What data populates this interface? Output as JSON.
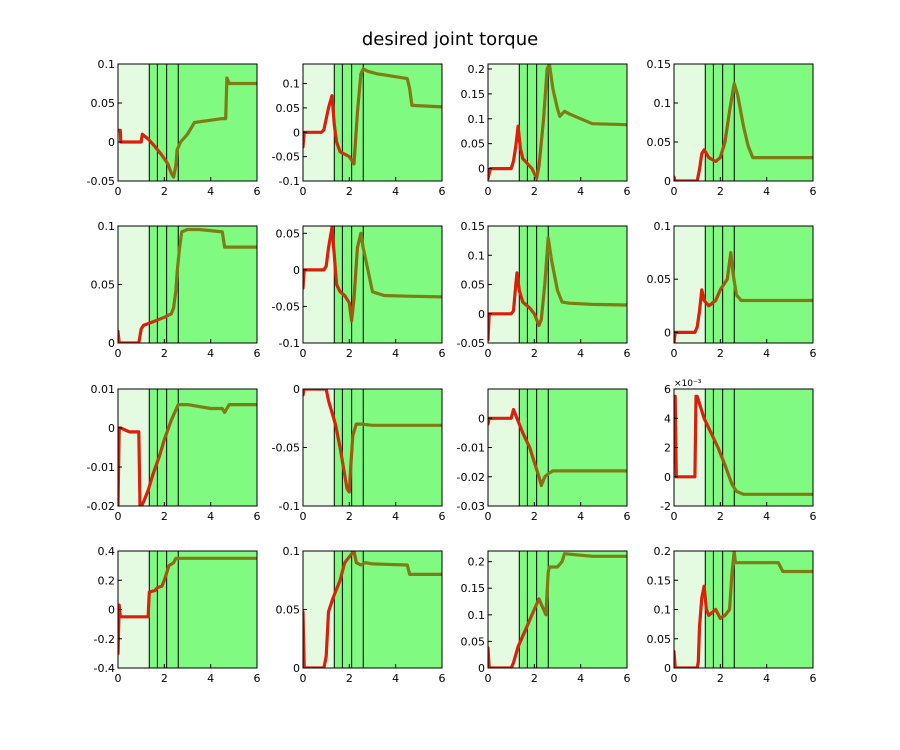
{
  "title": "desired joint torque",
  "colors": {
    "phase_light": "#e4fbe2",
    "phase_dark": "#80fa80",
    "line_start": "#dc1e0a",
    "line_end": "#7d7d14",
    "frame": "#000000"
  },
  "chart_data": [
    {
      "type": "line",
      "ylim": [
        -0.05,
        0.1
      ],
      "yticks": [
        "-0.05",
        "0",
        "0.05",
        "0.1"
      ],
      "xticks": [
        "0",
        "2",
        "4",
        "6"
      ],
      "xlim": [
        0,
        6
      ],
      "phases": [
        1.35,
        1.7,
        2.1,
        2.6
      ],
      "series": [
        {
          "x": [
            0,
            0.1,
            0.12,
            1,
            1.05,
            1.3,
            1.6,
            1.9,
            2.15,
            2.3,
            2.4,
            2.5,
            2.55,
            2.7,
            3,
            3.2,
            3.3,
            4,
            4.5,
            4.65,
            4.7,
            4.8,
            6
          ],
          "y": [
            0.015,
            0.015,
            0,
            0,
            0.01,
            0.004,
            -0.006,
            -0.017,
            -0.028,
            -0.04,
            -0.045,
            -0.03,
            -0.01,
            0,
            0.01,
            0.02,
            0.025,
            0.028,
            0.03,
            0.03,
            0.082,
            0.075,
            0.075
          ]
        }
      ]
    },
    {
      "type": "line",
      "ylim": [
        -0.1,
        0.14
      ],
      "yticks": [
        "-0.1",
        "-0.05",
        "0",
        "0.05",
        "0.1"
      ],
      "xticks": [
        "0",
        "2",
        "4",
        "6"
      ],
      "xlim": [
        0,
        6
      ],
      "phases": [
        1.35,
        1.7,
        2.1,
        2.6
      ],
      "series": [
        {
          "x": [
            0,
            0.05,
            0.15,
            0.8,
            0.9,
            1.1,
            1.25,
            1.35,
            1.45,
            1.6,
            1.8,
            2.0,
            2.2,
            2.35,
            2.5,
            2.6,
            2.8,
            3.2,
            4.5,
            4.6,
            4.7,
            6
          ],
          "y": [
            -0.03,
            0,
            0,
            0,
            0.005,
            0.05,
            0.075,
            0.015,
            -0.02,
            -0.04,
            -0.045,
            -0.05,
            -0.065,
            0.04,
            0.12,
            0.13,
            0.125,
            0.12,
            0.11,
            0.09,
            0.055,
            0.052
          ]
        }
      ]
    },
    {
      "type": "line",
      "ylim": [
        -0.025,
        0.21
      ],
      "yticks": [
        "0",
        "0.05",
        "0.1",
        "0.15",
        "0.2"
      ],
      "xticks": [
        "0",
        "2",
        "4",
        "6"
      ],
      "xlim": [
        0,
        6
      ],
      "phases": [
        1.35,
        1.7,
        2.1,
        2.6
      ],
      "series": [
        {
          "x": [
            0,
            0.1,
            0.2,
            1,
            1.1,
            1.2,
            1.3,
            1.4,
            1.5,
            1.7,
            1.9,
            2.0,
            2.1,
            2.2,
            2.4,
            2.55,
            2.65,
            2.8,
            3,
            3.1,
            3.3,
            3.5,
            4,
            4.5,
            6
          ],
          "y": [
            -0.02,
            0,
            0,
            0,
            0.015,
            0.045,
            0.085,
            0.04,
            0.02,
            0.01,
            0.0,
            -0.01,
            -0.02,
            0.005,
            0.1,
            0.2,
            0.21,
            0.16,
            0.12,
            0.105,
            0.115,
            0.11,
            0.1,
            0.09,
            0.088
          ]
        }
      ]
    },
    {
      "type": "line",
      "ylim": [
        0,
        0.15
      ],
      "yticks": [
        "0",
        "0.05",
        "0.1",
        "0.15"
      ],
      "xticks": [
        "0",
        "2",
        "4",
        "6"
      ],
      "xlim": [
        0,
        6
      ],
      "phases": [
        1.35,
        1.7,
        2.1,
        2.6
      ],
      "series": [
        {
          "x": [
            0,
            0.05,
            0.2,
            1,
            1.1,
            1.2,
            1.3,
            1.5,
            1.8,
            2.0,
            2.2,
            2.4,
            2.6,
            2.75,
            3.0,
            3.2,
            3.4,
            3.6,
            6
          ],
          "y": [
            0.005,
            0,
            0,
            0,
            0.015,
            0.035,
            0.04,
            0.03,
            0.025,
            0.03,
            0.05,
            0.09,
            0.125,
            0.11,
            0.07,
            0.045,
            0.03,
            0.03,
            0.03
          ]
        }
      ]
    },
    {
      "type": "line",
      "ylim": [
        0,
        0.1
      ],
      "yticks": [
        "0",
        "0.05",
        "0.1"
      ],
      "xticks": [
        "0",
        "2",
        "4",
        "6"
      ],
      "xlim": [
        0,
        6
      ],
      "phases": [
        1.35,
        1.7,
        2.1,
        2.6
      ],
      "series": [
        {
          "x": [
            0,
            0.05,
            0.1,
            0.9,
            1.0,
            1.1,
            1.5,
            2.0,
            2.3,
            2.4,
            2.5,
            2.55,
            2.65,
            2.75,
            3.0,
            3.5,
            4.5,
            4.6,
            6
          ],
          "y": [
            0.01,
            0,
            0,
            0,
            0.012,
            0.015,
            0.018,
            0.022,
            0.025,
            0.03,
            0.045,
            0.06,
            0.08,
            0.095,
            0.097,
            0.097,
            0.095,
            0.082,
            0.082
          ]
        }
      ]
    },
    {
      "type": "line",
      "ylim": [
        -0.1,
        0.06
      ],
      "yticks": [
        "-0.1",
        "-0.05",
        "0",
        "0.05"
      ],
      "xticks": [
        "0",
        "2",
        "4",
        "6"
      ],
      "xlim": [
        0,
        6
      ],
      "phases": [
        1.35,
        1.7,
        2.1,
        2.6
      ],
      "series": [
        {
          "x": [
            0,
            0.05,
            0.1,
            0.9,
            1.0,
            1.1,
            1.25,
            1.35,
            1.45,
            1.6,
            1.8,
            2.0,
            2.1,
            2.2,
            2.35,
            2.5,
            2.6,
            2.8,
            3.0,
            3.5,
            4.5,
            6
          ],
          "y": [
            -0.025,
            0,
            0,
            0,
            0.005,
            0.03,
            0.058,
            0.02,
            -0.02,
            -0.03,
            -0.035,
            -0.045,
            -0.07,
            -0.04,
            0.03,
            0.05,
            0.03,
            0.0,
            -0.03,
            -0.035,
            -0.036,
            -0.037
          ]
        }
      ]
    },
    {
      "type": "line",
      "ylim": [
        -0.05,
        0.15
      ],
      "yticks": [
        "-0.05",
        "0",
        "0.05",
        "0.1",
        "0.15"
      ],
      "xticks": [
        "0",
        "2",
        "4",
        "6"
      ],
      "xlim": [
        0,
        6
      ],
      "phases": [
        1.35,
        1.7,
        2.1,
        2.6
      ],
      "series": [
        {
          "x": [
            0,
            0.05,
            0.1,
            1.0,
            1.1,
            1.2,
            1.25,
            1.35,
            1.5,
            1.8,
            2.0,
            2.2,
            2.3,
            2.45,
            2.6,
            2.75,
            3.0,
            3.2,
            3.5,
            4.5,
            6
          ],
          "y": [
            -0.045,
            0,
            0,
            0,
            0.005,
            0.05,
            0.07,
            0.04,
            0.02,
            0.01,
            0.0,
            -0.02,
            -0.01,
            0.05,
            0.13,
            0.09,
            0.04,
            0.02,
            0.018,
            0.016,
            0.015
          ]
        }
      ]
    },
    {
      "type": "line",
      "ylim": [
        -0.01,
        0.1
      ],
      "yticks": [
        "0",
        "0.05",
        "0.1"
      ],
      "xticks": [
        "0",
        "2",
        "4",
        "6"
      ],
      "xlim": [
        0,
        6
      ],
      "phases": [
        1.35,
        1.7,
        2.1,
        2.6
      ],
      "series": [
        {
          "x": [
            0,
            0.05,
            0.15,
            0.9,
            1.0,
            1.1,
            1.2,
            1.3,
            1.5,
            1.8,
            2.0,
            2.3,
            2.45,
            2.55,
            2.7,
            2.9,
            3.1,
            3.5,
            6
          ],
          "y": [
            -0.01,
            0,
            0,
            0,
            0.005,
            0.02,
            0.04,
            0.03,
            0.025,
            0.03,
            0.04,
            0.05,
            0.075,
            0.055,
            0.035,
            0.03,
            0.03,
            0.03,
            0.03
          ]
        }
      ]
    },
    {
      "type": "line",
      "ylim": [
        -0.02,
        0.01
      ],
      "yticks": [
        "-0.02",
        "-0.01",
        "0",
        "0.01"
      ],
      "xticks": [
        "0",
        "2",
        "4",
        "6"
      ],
      "xlim": [
        0,
        6
      ],
      "phases": [
        1.35,
        1.7,
        2.1,
        2.6
      ],
      "series": [
        {
          "x": [
            0,
            0.05,
            0.12,
            0.5,
            0.9,
            0.95,
            1.0,
            1.1,
            1.3,
            1.5,
            1.8,
            2.0,
            2.3,
            2.6,
            2.8,
            3,
            4,
            4.5,
            4.6,
            4.8,
            6
          ],
          "y": [
            -0.02,
            0,
            0,
            -0.001,
            -0.001,
            -0.02,
            -0.02,
            -0.019,
            -0.016,
            -0.012,
            -0.007,
            -0.003,
            0.002,
            0.006,
            0.006,
            0.006,
            0.005,
            0.005,
            0.004,
            0.006,
            0.006
          ]
        }
      ]
    },
    {
      "type": "line",
      "ylim": [
        -0.1,
        0
      ],
      "yticks": [
        "-0.1",
        "-0.05",
        "0"
      ],
      "xticks": [
        "0",
        "2",
        "4",
        "6"
      ],
      "xlim": [
        0,
        6
      ],
      "phases": [
        1.35,
        1.7,
        2.1,
        2.6
      ],
      "series": [
        {
          "x": [
            0,
            0.05,
            0.1,
            1,
            1.1,
            1.4,
            1.6,
            1.9,
            2.0,
            2.05,
            2.15,
            2.3,
            2.5,
            3,
            4.5,
            6
          ],
          "y": [
            -0.005,
            0,
            0,
            0,
            -0.01,
            -0.03,
            -0.05,
            -0.085,
            -0.088,
            -0.07,
            -0.04,
            -0.03,
            -0.03,
            -0.031,
            -0.031,
            -0.031
          ]
        }
      ]
    },
    {
      "type": "line",
      "ylim": [
        -0.03,
        0.01
      ],
      "yticks": [
        "-0.03",
        "-0.02",
        "-0.01",
        "0"
      ],
      "xticks": [
        "0",
        "2",
        "4",
        "6"
      ],
      "xlim": [
        0,
        6
      ],
      "phases": [
        1.35,
        1.7,
        2.1,
        2.6
      ],
      "series": [
        {
          "x": [
            0,
            0.05,
            0.1,
            1.0,
            1.1,
            1.2,
            1.5,
            1.8,
            2.0,
            2.2,
            2.3,
            2.45,
            2.6,
            2.8,
            3.0,
            4.5,
            6
          ],
          "y": [
            -0.002,
            0,
            0,
            0,
            0.003,
            0.001,
            -0.005,
            -0.01,
            -0.015,
            -0.02,
            -0.023,
            -0.02,
            -0.019,
            -0.018,
            -0.018,
            -0.018,
            -0.018
          ]
        }
      ]
    },
    {
      "type": "line",
      "ylim": [
        -0.002,
        0.006
      ],
      "yticks": [
        "-2",
        "0",
        "2",
        "4",
        "6"
      ],
      "exponent": "×10⁻³",
      "xticks": [
        "0",
        "2",
        "4",
        "6"
      ],
      "xlim": [
        0,
        6
      ],
      "phases": [
        1.35,
        1.7,
        2.1,
        2.6
      ],
      "series": [
        {
          "x": [
            0,
            0.05,
            0.1,
            0.15,
            0.5,
            0.9,
            0.95,
            1.0,
            1.1,
            1.3,
            1.6,
            1.9,
            2.2,
            2.5,
            2.7,
            3,
            4,
            5,
            6
          ],
          "y": [
            0.0055,
            0.0055,
            0,
            0,
            0,
            0,
            0.0055,
            0.0055,
            0.005,
            0.004,
            0.003,
            0.002,
            0.0008,
            -0.0005,
            -0.001,
            -0.0012,
            -0.0012,
            -0.0012,
            -0.0012
          ]
        }
      ]
    },
    {
      "type": "line",
      "ylim": [
        -0.4,
        0.4
      ],
      "yticks": [
        "-0.4",
        "-0.2",
        "0",
        "0.2",
        "0.4"
      ],
      "xticks": [
        "0",
        "2",
        "4",
        "6"
      ],
      "xlim": [
        0,
        6
      ],
      "phases": [
        1.35,
        1.7,
        2.1,
        2.6
      ],
      "series": [
        {
          "x": [
            0,
            0.05,
            0.1,
            0.15,
            1.3,
            1.35,
            1.6,
            1.7,
            1.9,
            2.0,
            2.2,
            2.4,
            2.5,
            2.6,
            3,
            4,
            6
          ],
          "y": [
            -0.3,
            0.03,
            -0.05,
            -0.05,
            -0.05,
            0.12,
            0.13,
            0.15,
            0.16,
            0.2,
            0.3,
            0.32,
            0.35,
            0.35,
            0.35,
            0.35,
            0.35
          ]
        }
      ]
    },
    {
      "type": "line",
      "ylim": [
        0,
        0.1
      ],
      "yticks": [
        "0",
        "0.05",
        "0.1"
      ],
      "xticks": [
        "0",
        "2",
        "4",
        "6"
      ],
      "xlim": [
        0,
        6
      ],
      "phases": [
        1.35,
        1.7,
        2.1,
        2.6
      ],
      "series": [
        {
          "x": [
            0,
            0.05,
            0.1,
            0.9,
            1.0,
            1.1,
            1.3,
            1.6,
            1.8,
            2.0,
            2.2,
            2.3,
            2.5,
            2.7,
            3.0,
            4.5,
            4.6,
            4.7,
            6
          ],
          "y": [
            0.048,
            0,
            0,
            0,
            0.01,
            0.048,
            0.06,
            0.075,
            0.09,
            0.095,
            0.1,
            0.09,
            0.088,
            0.09,
            0.089,
            0.088,
            0.08,
            0.08,
            0.08
          ]
        }
      ]
    },
    {
      "type": "line",
      "ylim": [
        0,
        0.22
      ],
      "yticks": [
        "0",
        "0.05",
        "0.1",
        "0.15",
        "0.2"
      ],
      "xticks": [
        "0",
        "2",
        "4",
        "6"
      ],
      "xlim": [
        0,
        6
      ],
      "phases": [
        1.35,
        1.7,
        2.1,
        2.6
      ],
      "series": [
        {
          "x": [
            0,
            0.05,
            0.1,
            1.0,
            1.1,
            1.3,
            1.6,
            1.9,
            2.1,
            2.2,
            2.3,
            2.5,
            2.6,
            2.65,
            3.0,
            3.2,
            3.3,
            4.5,
            6
          ],
          "y": [
            0.038,
            0,
            0,
            0,
            0.01,
            0.04,
            0.07,
            0.1,
            0.12,
            0.13,
            0.12,
            0.1,
            0.18,
            0.19,
            0.19,
            0.2,
            0.215,
            0.21,
            0.21
          ]
        }
      ]
    },
    {
      "type": "line",
      "ylim": [
        0,
        0.2
      ],
      "yticks": [
        "0",
        "0.05",
        "0.1",
        "0.15",
        "0.2"
      ],
      "xticks": [
        "0",
        "2",
        "4",
        "6"
      ],
      "xlim": [
        0,
        6
      ],
      "phases": [
        1.35,
        1.7,
        2.1,
        2.6
      ],
      "series": [
        {
          "x": [
            0,
            0.05,
            0.1,
            1.0,
            1.05,
            1.1,
            1.2,
            1.3,
            1.4,
            1.5,
            1.8,
            2.0,
            2.2,
            2.4,
            2.5,
            2.6,
            2.65,
            2.8,
            3,
            4.5,
            4.7,
            6
          ],
          "y": [
            0.028,
            0,
            0,
            0,
            0.01,
            0.07,
            0.12,
            0.14,
            0.1,
            0.09,
            0.1,
            0.085,
            0.09,
            0.1,
            0.16,
            0.2,
            0.18,
            0.18,
            0.18,
            0.18,
            0.165,
            0.165
          ]
        }
      ]
    }
  ]
}
